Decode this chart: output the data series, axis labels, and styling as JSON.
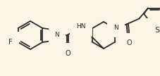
{
  "background_color": "#fdf6e8",
  "line_color": "#2a2a2a",
  "line_width": 1.3,
  "font_size": 6.5,
  "figsize": [
    2.27,
    1.08
  ],
  "dpi": 100,
  "xlim": [
    0,
    227
  ],
  "ylim": [
    0,
    108
  ]
}
